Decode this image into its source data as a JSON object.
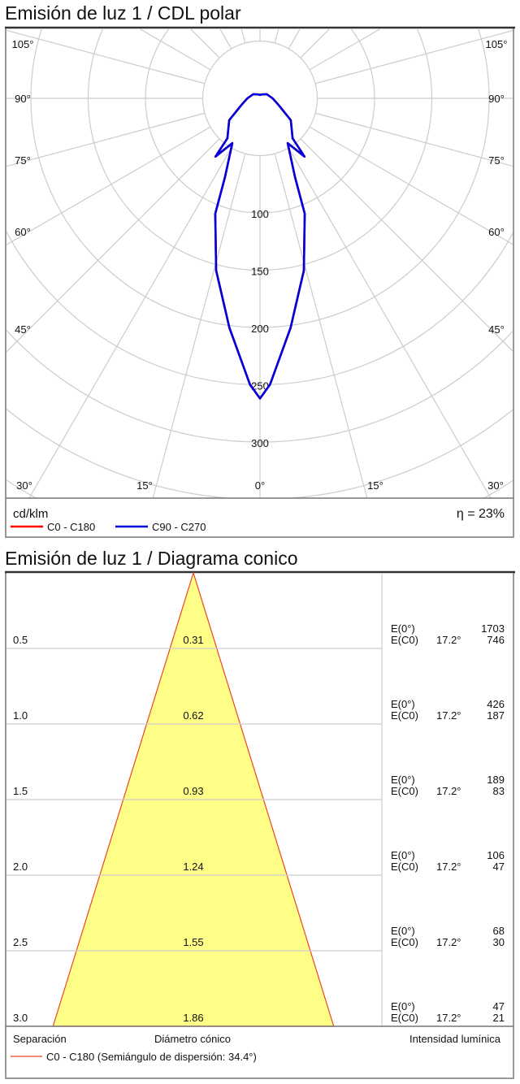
{
  "polar": {
    "title": "Emisión de luz 1 / CDL polar",
    "unit": "cd/klm",
    "efficiency": "η = 23%",
    "colors": {
      "c0": "#ff0000",
      "c90": "#0000dd",
      "grid": "#cccccc"
    },
    "chart_data": {
      "type": "polar",
      "radial_unit": "cd/klm",
      "radial_ticks": [
        100,
        150,
        200,
        250,
        300
      ],
      "ring_step": 50,
      "angle_step": 15,
      "angle_labels": [
        "105°",
        "90°",
        "75°",
        "60°",
        "45°",
        "30°",
        "15°",
        "0°"
      ],
      "legend": [
        "C0 - C180",
        "C90 - C270"
      ],
      "series": [
        {
          "name": "C0 - C180",
          "gamma": [
            0,
            2,
            7.6,
            14.3,
            21.2,
            24,
            31.7,
            37.4,
            39.2,
            54.6,
            70.8,
            90,
            120,
            150,
            180
          ],
          "values": [
            262,
            250,
            202,
            155,
            108,
            75,
            46,
            64,
            45,
            33,
            17,
            11,
            7,
            4,
            3
          ]
        },
        {
          "name": "C90 - C270",
          "gamma": [
            0,
            2,
            7.6,
            14.3,
            21.2,
            24,
            31.7,
            37.4,
            39.2,
            54.6,
            70.8,
            90,
            120,
            150,
            180
          ],
          "values": [
            262,
            250,
            202,
            155,
            108,
            75,
            46,
            64,
            45,
            33,
            17,
            11,
            7,
            4,
            3
          ]
        }
      ]
    }
  },
  "cone": {
    "title": "Emisión de luz 1 / Diagrama conico",
    "col_separation": "Separación",
    "col_diameter": "Diámetro cónico",
    "col_intensity": "Intensidad lumínica",
    "legend": "C0 - C180 (Semiángulo de dispersión: 34.4°)",
    "colors": {
      "fill": "#ffff88",
      "line": "#ee4422"
    },
    "chart_data": {
      "type": "table",
      "half_angle_deg": 17.2,
      "rows": [
        {
          "distance": "0.5",
          "diameter": "0.31",
          "e0_label": "E(0°)",
          "e0": "1703",
          "ec0_label": "E(C0)",
          "ec0_angle": "17.2°",
          "ec0": "746"
        },
        {
          "distance": "1.0",
          "diameter": "0.62",
          "e0_label": "E(0°)",
          "e0": "426",
          "ec0_label": "E(C0)",
          "ec0_angle": "17.2°",
          "ec0": "187"
        },
        {
          "distance": "1.5",
          "diameter": "0.93",
          "e0_label": "E(0°)",
          "e0": "189",
          "ec0_label": "E(C0)",
          "ec0_angle": "17.2°",
          "ec0": "83"
        },
        {
          "distance": "2.0",
          "diameter": "1.24",
          "e0_label": "E(0°)",
          "e0": "106",
          "ec0_label": "E(C0)",
          "ec0_angle": "17.2°",
          "ec0": "47"
        },
        {
          "distance": "2.5",
          "diameter": "1.55",
          "e0_label": "E(0°)",
          "e0": "68",
          "ec0_label": "E(C0)",
          "ec0_angle": "17.2°",
          "ec0": "30"
        },
        {
          "distance": "3.0",
          "diameter": "1.86",
          "e0_label": "E(0°)",
          "e0": "47",
          "ec0_label": "E(C0)",
          "ec0_angle": "17.2°",
          "ec0": "21"
        }
      ]
    }
  }
}
